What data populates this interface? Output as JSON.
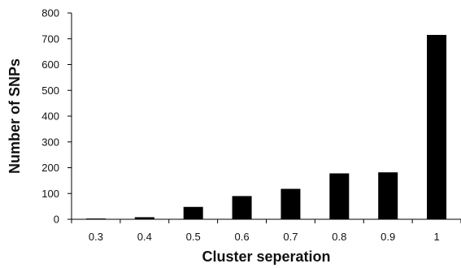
{
  "chart_data": {
    "type": "bar",
    "categories": [
      "0.3",
      "0.4",
      "0.5",
      "0.6",
      "0.7",
      "0.8",
      "0.9",
      "1"
    ],
    "values": [
      3,
      8,
      48,
      90,
      118,
      178,
      182,
      715
    ],
    "title": "",
    "xlabel": "Cluster seperation",
    "ylabel": "Number of SNPs",
    "ylim": [
      0,
      800
    ],
    "yticks": [
      0,
      100,
      200,
      300,
      400,
      500,
      600,
      700,
      800
    ],
    "grid": false,
    "legend": "none",
    "colors": {
      "bar": "#000000",
      "axis": "#000000",
      "text": "#111111"
    }
  }
}
